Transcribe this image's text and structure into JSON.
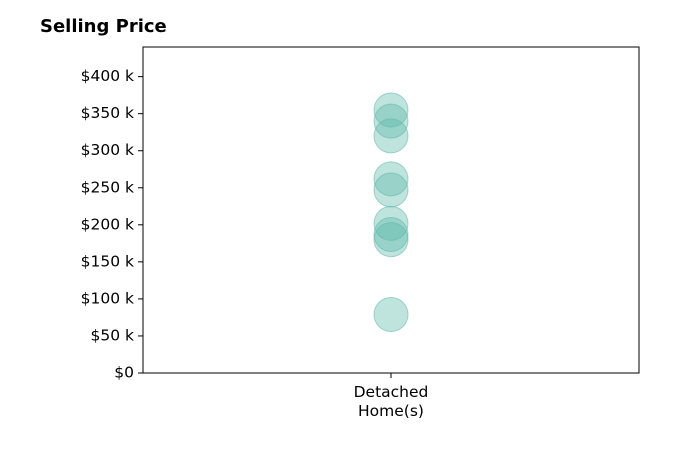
{
  "chart_data": {
    "type": "scatter",
    "title": "Selling Price",
    "xlabel": "",
    "ylabel": "",
    "categories": [
      "Detached\nHome(s)"
    ],
    "series": [
      {
        "category": "Detached\nHome(s)",
        "values": [
          355000,
          340000,
          320000,
          262000,
          247000,
          202000,
          187000,
          180000,
          79000
        ]
      }
    ],
    "ylim": [
      0,
      440000
    ],
    "yticks": [
      0,
      50000,
      100000,
      150000,
      200000,
      250000,
      300000,
      350000,
      400000
    ],
    "ytick_labels": [
      "$0",
      "$50 k",
      "$100 k",
      "$150 k",
      "$200 k",
      "$250 k",
      "$300 k",
      "$350 k",
      "$400 k"
    ],
    "grid": false,
    "legend": "none",
    "marker_color": "#5fb8ab",
    "marker_alpha": 0.4
  }
}
